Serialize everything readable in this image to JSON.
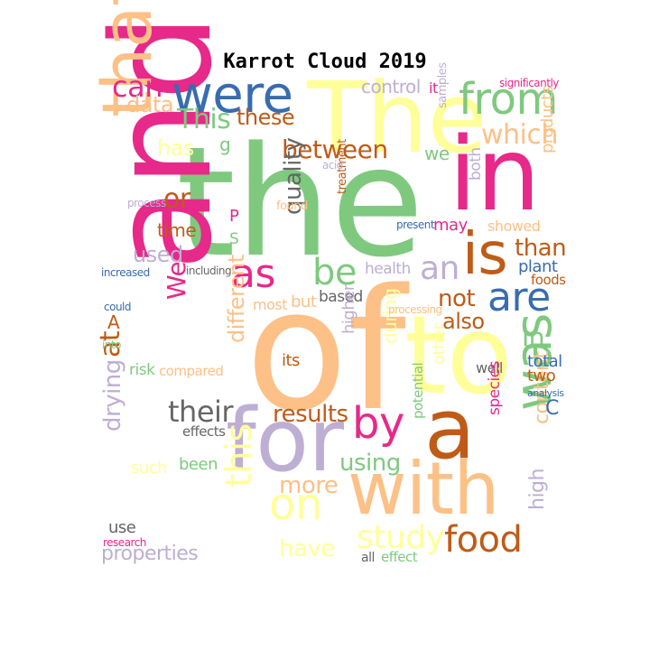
{
  "title": "Karrot Cloud 2019",
  "palette": {
    "pink": "#e7298a",
    "green": "#7fc97f",
    "yellow": "#ffff99",
    "peach": "#fdc086",
    "lavender": "#beaed4",
    "blue": "#386cb0",
    "brown": "#bf5b17",
    "gray": "#666666"
  },
  "words": [
    {
      "text": "the",
      "color": "green"
    },
    {
      "text": "of",
      "color": "peach"
    },
    {
      "text": "and",
      "color": "pink"
    },
    {
      "text": "in",
      "color": "pink"
    },
    {
      "text": "The",
      "color": "yellow"
    },
    {
      "text": "to",
      "color": "yellow"
    },
    {
      "text": "for",
      "color": "lavender"
    },
    {
      "text": "a",
      "color": "brown"
    },
    {
      "text": "with",
      "color": "peach"
    },
    {
      "text": "that",
      "color": "peach"
    },
    {
      "text": "were",
      "color": "blue"
    },
    {
      "text": "from",
      "color": "green"
    },
    {
      "text": "is",
      "color": "brown"
    },
    {
      "text": "was",
      "color": "green"
    },
    {
      "text": "are",
      "color": "blue"
    },
    {
      "text": "by",
      "color": "pink"
    },
    {
      "text": "on",
      "color": "yellow"
    },
    {
      "text": "as",
      "color": "pink"
    },
    {
      "text": "be",
      "color": "green"
    },
    {
      "text": "an",
      "color": "lavender"
    },
    {
      "text": "food",
      "color": "brown"
    },
    {
      "text": "this",
      "color": "yellow"
    },
    {
      "text": "study",
      "color": "yellow"
    },
    {
      "text": "which",
      "color": "peach"
    },
    {
      "text": "can",
      "color": "pink"
    },
    {
      "text": "their",
      "color": "gray"
    },
    {
      "text": "results",
      "color": "brown"
    },
    {
      "text": "between",
      "color": "brown"
    },
    {
      "text": "quality",
      "color": "gray"
    },
    {
      "text": "This",
      "color": "green"
    },
    {
      "text": "these",
      "color": "brown"
    },
    {
      "text": "data",
      "color": "peach"
    },
    {
      "text": "at",
      "color": "brown"
    },
    {
      "text": "not",
      "color": "brown"
    },
    {
      "text": "than",
      "color": "brown"
    },
    {
      "text": "also",
      "color": "brown"
    },
    {
      "text": "or",
      "color": "brown"
    },
    {
      "text": "used",
      "color": "lavender"
    },
    {
      "text": "drying",
      "color": "lavender"
    },
    {
      "text": "using",
      "color": "green"
    },
    {
      "text": "have",
      "color": "yellow"
    },
    {
      "text": "more",
      "color": "peach"
    },
    {
      "text": "different",
      "color": "peach"
    },
    {
      "text": "high",
      "color": "lavender"
    },
    {
      "text": "content",
      "color": "peach"
    },
    {
      "text": "In",
      "color": "green"
    },
    {
      "text": "We",
      "color": "pink"
    },
    {
      "text": "has",
      "color": "yellow"
    },
    {
      "text": "time",
      "color": "brown"
    },
    {
      "text": "properties",
      "color": "lavender"
    },
    {
      "text": "control",
      "color": "lavender"
    },
    {
      "text": "we",
      "color": "green"
    },
    {
      "text": "may",
      "color": "pink"
    },
    {
      "text": "showed",
      "color": "peach"
    },
    {
      "text": "products",
      "color": "peach"
    },
    {
      "text": "plant",
      "color": "blue"
    },
    {
      "text": "foods",
      "color": "brown"
    },
    {
      "text": "health",
      "color": "lavender"
    },
    {
      "text": "based",
      "color": "gray"
    },
    {
      "text": "but",
      "color": "peach"
    },
    {
      "text": "most",
      "color": "peach"
    },
    {
      "text": "its",
      "color": "brown"
    },
    {
      "text": "higher",
      "color": "lavender"
    },
    {
      "text": "during",
      "color": "yellow"
    },
    {
      "text": "other",
      "color": "yellow"
    },
    {
      "text": "well",
      "color": "gray"
    },
    {
      "text": "total",
      "color": "blue"
    },
    {
      "text": "two",
      "color": "brown"
    },
    {
      "text": "species",
      "color": "pink"
    },
    {
      "text": "potential",
      "color": "green"
    },
    {
      "text": "been",
      "color": "green"
    },
    {
      "text": "such",
      "color": "yellow"
    },
    {
      "text": "effects",
      "color": "gray"
    },
    {
      "text": "risk",
      "color": "green"
    },
    {
      "text": "compared",
      "color": "peach"
    },
    {
      "text": "use",
      "color": "gray"
    },
    {
      "text": "all",
      "color": "gray"
    },
    {
      "text": "effect",
      "color": "green"
    },
    {
      "text": "research",
      "color": "pink"
    },
    {
      "text": "into",
      "color": "green"
    },
    {
      "text": "could",
      "color": "blue"
    },
    {
      "text": "A",
      "color": "brown"
    },
    {
      "text": "C",
      "color": "blue"
    },
    {
      "text": "increased",
      "color": "blue"
    },
    {
      "text": "including",
      "color": "gray"
    },
    {
      "text": "process",
      "color": "lavender"
    },
    {
      "text": "found",
      "color": "peach"
    },
    {
      "text": "treatment",
      "color": "brown"
    },
    {
      "text": "present",
      "color": "blue"
    },
    {
      "text": "both",
      "color": "lavender"
    },
    {
      "text": "samples",
      "color": "lavender"
    },
    {
      "text": "acid",
      "color": "lavender"
    },
    {
      "text": "it",
      "color": "pink"
    },
    {
      "text": "significantly",
      "color": "pink"
    },
    {
      "text": "analysis",
      "color": "blue"
    },
    {
      "text": "processing",
      "color": "peach"
    },
    {
      "text": "g",
      "color": "green"
    },
    {
      "text": "P",
      "color": "pink"
    },
    {
      "text": "S",
      "color": "green"
    }
  ]
}
